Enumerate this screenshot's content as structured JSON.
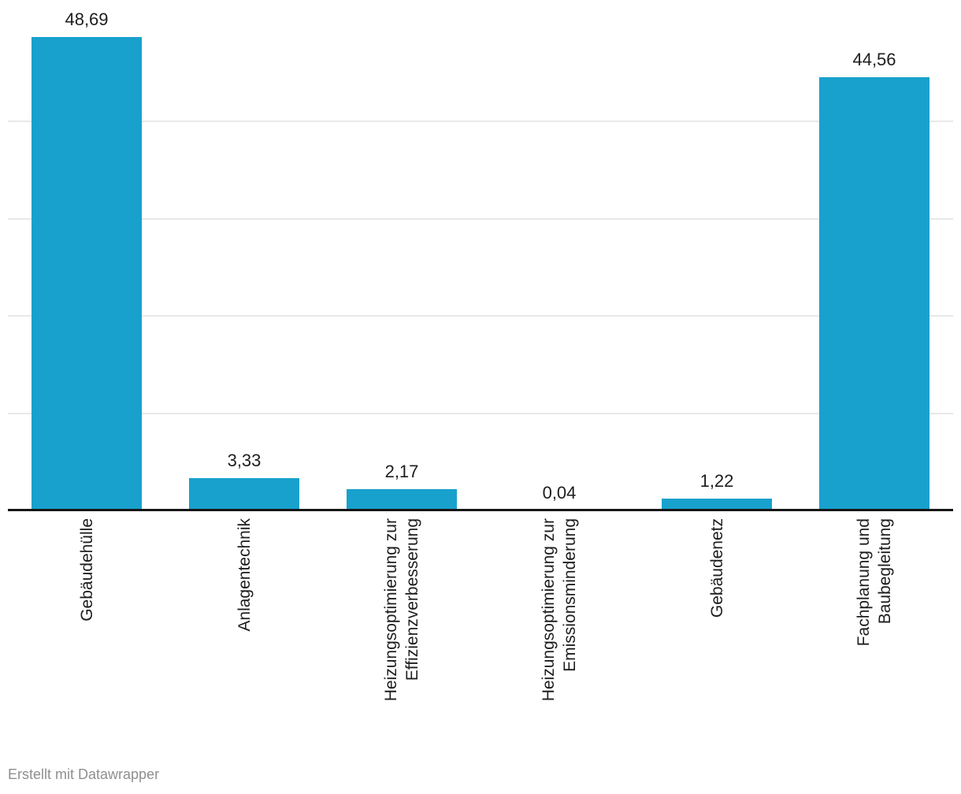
{
  "chart_data": {
    "type": "bar",
    "categories": [
      "Gebäudehülle",
      "Anlagentechnik",
      "Heizungsoptimierung zur Effizienzverbesserung",
      "Heizungsoptimierung zur Emissionsminderung",
      "Gebäudenetz",
      "Fachplanung und Baubegleitung"
    ],
    "category_label_lines": [
      [
        "Gebäudehülle"
      ],
      [
        "Anlagentechnik"
      ],
      [
        "Heizungsoptimierung zur",
        "Effizienzverbesserung"
      ],
      [
        "Heizungsoptimierung zur",
        "Emissionsminderung"
      ],
      [
        "Gebäudenetz"
      ],
      [
        "Fachplanung und",
        "Baubegleitung"
      ]
    ],
    "values": [
      48.69,
      3.33,
      2.17,
      0.04,
      1.22,
      44.56
    ],
    "value_labels": [
      "48,69",
      "3,33",
      "2,17",
      "0,04",
      "1,22",
      "44,56"
    ],
    "title": "",
    "xlabel": "",
    "ylabel": "",
    "ylim": [
      0,
      52.5
    ],
    "gridlines": [
      10,
      20,
      30,
      40
    ],
    "grid": "on",
    "legend": "none",
    "bar_color": "#18a1cd",
    "gridline_color": "#e8e8e8",
    "axis_color": "#161616",
    "label_color": "#1d1d1d"
  },
  "footer": {
    "credit": "Erstellt mit Datawrapper"
  }
}
